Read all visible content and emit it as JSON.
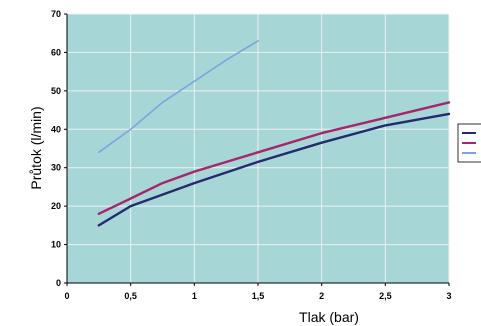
{
  "chart_data": {
    "type": "line",
    "title": "",
    "xlabel": "Tlak (bar)",
    "ylabel": "Průtok (l/min)",
    "xlim": [
      0,
      3
    ],
    "ylim": [
      0,
      70
    ],
    "x_ticks": [
      0,
      0.5,
      1,
      1.5,
      2,
      2.5,
      3
    ],
    "x_tick_labels": [
      "0",
      "0,5",
      "1",
      "1,5",
      "2",
      "2,5",
      "3"
    ],
    "y_ticks": [
      0,
      10,
      20,
      30,
      40,
      50,
      60,
      70
    ],
    "y_tick_labels": [
      "0",
      "10",
      "20",
      "30",
      "40",
      "50",
      "60",
      "70"
    ],
    "grid": true,
    "legend_position": "right",
    "plot_background": "#a7d6d6",
    "series": [
      {
        "color": "#26296e",
        "x": [
          0.25,
          0.5,
          0.75,
          1,
          1.5,
          2,
          2.5,
          3
        ],
        "y": [
          15,
          20,
          23,
          26,
          31.5,
          36.5,
          41,
          44
        ]
      },
      {
        "color": "#a8246b",
        "x": [
          0.25,
          0.5,
          0.75,
          1,
          1.5,
          2,
          2.5,
          3
        ],
        "y": [
          18,
          22,
          26,
          29,
          34,
          39,
          43,
          47
        ]
      },
      {
        "color": "#7ea4e0",
        "x": [
          0.25,
          0.5,
          0.75,
          1,
          1.25,
          1.5
        ],
        "y": [
          34,
          40,
          47,
          52.5,
          58,
          63
        ]
      }
    ]
  }
}
